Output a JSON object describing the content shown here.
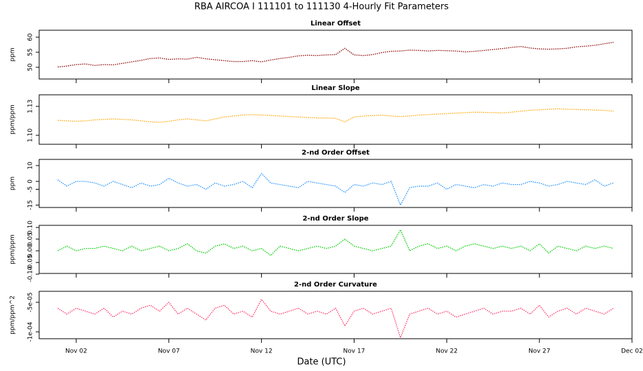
{
  "title": "RBA   AIRCOA I   111101 to 111130   4-Hourly Fit Parameters",
  "xlabel": "Date (UTC)",
  "chart_data": [
    {
      "type": "line",
      "title": "Linear Offset",
      "ylabel": "ppm",
      "x": [
        1,
        1.5,
        2,
        2.5,
        3,
        3.5,
        4,
        4.5,
        5,
        5.5,
        6,
        6.5,
        7,
        7.5,
        8,
        8.5,
        9,
        9.5,
        10,
        10.5,
        11,
        11.5,
        12,
        12.5,
        13,
        13.5,
        14,
        14.5,
        15,
        15.5,
        16,
        16.5,
        17,
        17.5,
        18,
        18.5,
        19,
        19.5,
        20,
        20.5,
        21,
        21.5,
        22,
        22.5,
        23,
        23.5,
        24,
        24.5,
        25,
        25.5,
        26,
        26.5,
        27,
        27.5,
        28,
        28.5,
        29,
        29.5,
        30,
        30.5,
        31
      ],
      "xlim": [
        0,
        32
      ],
      "ylim": [
        46.1,
        62.3
      ],
      "yticks": [
        50,
        55,
        60
      ],
      "series": [
        {
          "color": "#8b0000",
          "values": [
            50.1,
            50.4,
            50.9,
            51.1,
            50.6,
            50.9,
            50.8,
            51.3,
            51.8,
            52.3,
            52.9,
            53.1,
            52.6,
            52.8,
            52.7,
            53.3,
            52.8,
            52.5,
            52.2,
            51.9,
            51.9,
            52.2,
            51.8,
            52.4,
            52.9,
            53.3,
            53.8,
            54.0,
            53.9,
            54.1,
            54.2,
            56.3,
            54.1,
            53.9,
            54.2,
            54.9,
            55.3,
            55.4,
            55.7,
            55.6,
            55.4,
            55.6,
            55.5,
            55.4,
            55.1,
            55.3,
            55.6,
            55.9,
            56.2,
            56.6,
            56.9,
            56.4,
            56.1,
            56.0,
            56.1,
            56.3,
            56.8,
            57.0,
            57.3,
            57.8,
            58.3
          ]
        }
      ]
    },
    {
      "type": "line",
      "title": "Linear Slope",
      "ylabel": "ppm/ppm",
      "x": [
        1,
        1.5,
        2,
        2.5,
        3,
        3.5,
        4,
        4.5,
        5,
        5.5,
        6,
        6.5,
        7,
        7.5,
        8,
        8.5,
        9,
        9.5,
        10,
        10.5,
        11,
        11.5,
        12,
        12.5,
        13,
        13.5,
        14,
        14.5,
        15,
        15.5,
        16,
        16.5,
        17,
        17.5,
        18,
        18.5,
        19,
        19.5,
        20,
        20.5,
        21,
        21.5,
        22,
        22.5,
        23,
        23.5,
        24,
        24.5,
        25,
        25.5,
        26,
        26.5,
        27,
        27.5,
        28,
        28.5,
        29,
        29.5,
        30,
        30.5,
        31
      ],
      "xlim": [
        0,
        32
      ],
      "ylim": [
        1.0907,
        1.142
      ],
      "yticks": [
        {
          "value": 1.1,
          "label": "1.10"
        },
        1.13
      ],
      "series": [
        {
          "color": "#ffa500",
          "values": [
            1.1155,
            1.115,
            1.1145,
            1.115,
            1.116,
            1.1165,
            1.117,
            1.1165,
            1.116,
            1.115,
            1.114,
            1.1135,
            1.1145,
            1.116,
            1.117,
            1.116,
            1.115,
            1.117,
            1.119,
            1.12,
            1.121,
            1.1215,
            1.121,
            1.1205,
            1.12,
            1.1195,
            1.119,
            1.1185,
            1.118,
            1.118,
            1.1175,
            1.114,
            1.119,
            1.12,
            1.1205,
            1.121,
            1.12,
            1.1195,
            1.12,
            1.121,
            1.1215,
            1.122,
            1.1225,
            1.123,
            1.1235,
            1.124,
            1.1238,
            1.1235,
            1.1232,
            1.124,
            1.125,
            1.126,
            1.1265,
            1.127,
            1.1275,
            1.127,
            1.1268,
            1.1265,
            1.1262,
            1.1258,
            1.125
          ]
        }
      ]
    },
    {
      "type": "line",
      "title": "2-nd Order Offset",
      "ylabel": "ppm",
      "x": [
        1,
        1.5,
        2,
        2.5,
        3,
        3.5,
        4,
        4.5,
        5,
        5.5,
        6,
        6.5,
        7,
        7.5,
        8,
        8.5,
        9,
        9.5,
        10,
        10.5,
        11,
        11.5,
        12,
        12.5,
        13,
        13.5,
        14,
        14.5,
        15,
        15.5,
        16,
        16.5,
        17,
        17.5,
        18,
        18.5,
        19,
        19.5,
        20,
        20.5,
        21,
        21.5,
        22,
        22.5,
        23,
        23.5,
        24,
        24.5,
        25,
        25.5,
        26,
        26.5,
        27,
        27.5,
        28,
        28.5,
        29,
        29.5,
        30,
        30.5,
        31
      ],
      "xlim": [
        0,
        32
      ],
      "ylim": [
        -16.5,
        13.9
      ],
      "yticks": [
        -15,
        -5,
        0,
        10
      ],
      "series": [
        {
          "color": "#1e90ff",
          "values": [
            1,
            -3,
            0,
            0,
            -1,
            -3,
            0,
            -2,
            -4,
            -1,
            -3,
            -2,
            2,
            -1,
            -3,
            -2,
            -5,
            -1,
            -3,
            -2,
            0,
            -4,
            5,
            -1,
            -2,
            -3,
            -4,
            0,
            -1,
            -2,
            -3,
            -7,
            -2,
            -3,
            -1,
            -2,
            0,
            -15,
            -4,
            -3,
            -3,
            -1,
            -5,
            -2,
            -3,
            -4,
            -2,
            -3,
            -1,
            -2,
            -2,
            0,
            -1,
            -3,
            -2,
            0,
            -1,
            -2,
            1,
            -3,
            -1
          ]
        }
      ]
    },
    {
      "type": "line",
      "title": "2-nd Order Slope",
      "ylabel": "ppm/ppm",
      "x": [
        1,
        1.5,
        2,
        2.5,
        3,
        3.5,
        4,
        4.5,
        5,
        5.5,
        6,
        6.5,
        7,
        7.5,
        8,
        8.5,
        9,
        9.5,
        10,
        10.5,
        11,
        11.5,
        12,
        12.5,
        13,
        13.5,
        14,
        14.5,
        15,
        15.5,
        16,
        16.5,
        17,
        17.5,
        18,
        18.5,
        19,
        19.5,
        20,
        20.5,
        21,
        21.5,
        22,
        22.5,
        23,
        23.5,
        24,
        24.5,
        25,
        25.5,
        26,
        26.5,
        27,
        27.5,
        28,
        28.5,
        29,
        29.5,
        30,
        30.5,
        31
      ],
      "xlim": [
        0,
        32
      ],
      "ylim": [
        -0.097,
        0.109
      ],
      "yticks": [
        {
          "value": -0.1,
          "label": "-0.10"
        },
        -0.05,
        {
          "value": 0,
          "label": "0.00"
        },
        0.05,
        {
          "value": 0.1,
          "label": "0.10"
        }
      ],
      "series": [
        {
          "color": "#00cc00",
          "values": [
            0.0,
            0.02,
            0.0,
            0.01,
            0.01,
            0.02,
            0.01,
            0.0,
            0.02,
            0.0,
            0.01,
            0.02,
            0.0,
            0.01,
            0.03,
            0.0,
            -0.01,
            0.02,
            0.03,
            0.01,
            0.02,
            0.0,
            0.01,
            -0.02,
            0.02,
            0.01,
            0.0,
            0.01,
            0.02,
            0.01,
            0.02,
            0.05,
            0.02,
            0.01,
            0.0,
            0.01,
            0.02,
            0.09,
            0.0,
            0.02,
            0.03,
            0.01,
            0.02,
            0.0,
            0.02,
            0.03,
            0.02,
            0.01,
            0.02,
            0.01,
            0.02,
            0.0,
            0.03,
            -0.01,
            0.02,
            0.01,
            0.0,
            0.02,
            0.01,
            0.02,
            0.01
          ]
        }
      ]
    },
    {
      "type": "line",
      "title": "2-nd Order Curvature",
      "ylabel": "ppm/ppm^2",
      "x": [
        1,
        1.5,
        2,
        2.5,
        3,
        3.5,
        4,
        4.5,
        5,
        5.5,
        6,
        6.5,
        7,
        7.5,
        8,
        8.5,
        9,
        9.5,
        10,
        10.5,
        11,
        11.5,
        12,
        12.5,
        13,
        13.5,
        14,
        14.5,
        15,
        15.5,
        16,
        16.5,
        17,
        17.5,
        18,
        18.5,
        19,
        19.5,
        20,
        20.5,
        21,
        21.5,
        22,
        22.5,
        23,
        23.5,
        24,
        24.5,
        25,
        25.5,
        26,
        26.5,
        27,
        27.5,
        28,
        28.5,
        29,
        29.5,
        30,
        30.5,
        31
      ],
      "xlim": [
        0,
        32
      ],
      "ylim": [
        -0.0001116,
        -3.14e-05
      ],
      "yticks": [
        {
          "value": -0.0001,
          "label": "-1e-04"
        },
        {
          "value": -5e-05,
          "label": "-5e-05"
        }
      ],
      "xticks": [
        {
          "value": 2,
          "label": "Nov 02"
        },
        {
          "value": 7,
          "label": "Nov 07"
        },
        {
          "value": 12,
          "label": "Nov 12"
        },
        {
          "value": 17,
          "label": "Nov 17"
        },
        {
          "value": 22,
          "label": "Nov 22"
        },
        {
          "value": 27,
          "label": "Nov 27"
        },
        {
          "value": 32,
          "label": "Dec 02"
        }
      ],
      "series": [
        {
          "color": "#ff3366",
          "values": [
            -6e-05,
            -7e-05,
            -6e-05,
            -6.5e-05,
            -7e-05,
            -6e-05,
            -7.5e-05,
            -6.5e-05,
            -7e-05,
            -6e-05,
            -5.5e-05,
            -6.5e-05,
            -5e-05,
            -7e-05,
            -6e-05,
            -7e-05,
            -8e-05,
            -6e-05,
            -5.5e-05,
            -7e-05,
            -6.5e-05,
            -7.5e-05,
            -4.5e-05,
            -6.5e-05,
            -7e-05,
            -6.5e-05,
            -6e-05,
            -7e-05,
            -6.5e-05,
            -7e-05,
            -6e-05,
            -9e-05,
            -6.5e-05,
            -6e-05,
            -7e-05,
            -6.5e-05,
            -6e-05,
            -0.00011,
            -7e-05,
            -6.5e-05,
            -6e-05,
            -7e-05,
            -6.5e-05,
            -7.5e-05,
            -7e-05,
            -6.5e-05,
            -6e-05,
            -7e-05,
            -6.5e-05,
            -6.5e-05,
            -6e-05,
            -7e-05,
            -5.5e-05,
            -7.5e-05,
            -6.5e-05,
            -6e-05,
            -7e-05,
            -6e-05,
            -6.5e-05,
            -7e-05,
            -6e-05
          ]
        }
      ]
    }
  ]
}
